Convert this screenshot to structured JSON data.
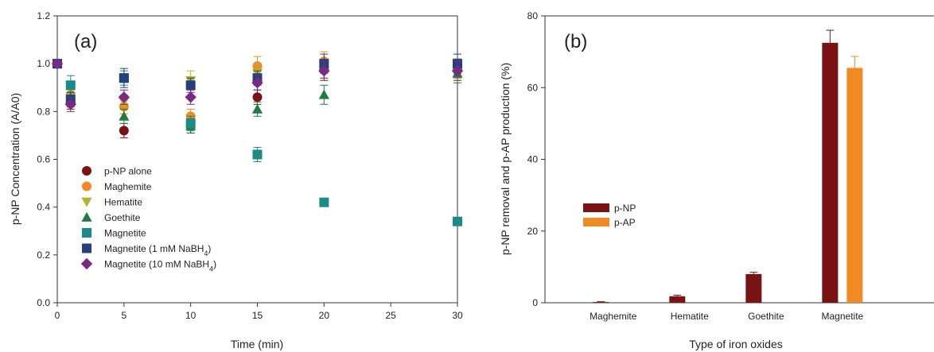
{
  "chart_data": [
    {
      "type": "scatter",
      "panel_label": "(a)",
      "xlabel": "Time (min)",
      "ylabel": "p-NP Concentration (A/A0)",
      "xlim": [
        0,
        30
      ],
      "ylim": [
        0,
        1.2
      ],
      "xticks": [
        0,
        5,
        10,
        15,
        20,
        25,
        30
      ],
      "yticks": [
        0.0,
        0.2,
        0.4,
        0.6,
        0.8,
        1.0,
        1.2
      ],
      "xtick_labels": [
        "0",
        "5",
        "10",
        "15",
        "20",
        "25",
        "30"
      ],
      "ytick_labels": [
        "0.0",
        "0.2",
        "0.4",
        "0.6",
        "0.8",
        "1.0",
        "1.2"
      ],
      "legend_position": "lower-left",
      "series": [
        {
          "name": "p-NP alone",
          "marker": "circle",
          "color": "#7a1414",
          "x": [
            0,
            1,
            5,
            10,
            15,
            20,
            30
          ],
          "y": [
            1.0,
            0.84,
            0.72,
            0.74,
            0.86,
            0.98,
            0.98
          ],
          "err": [
            0.01,
            0.03,
            0.03,
            0.03,
            0.03,
            0.04,
            0.04
          ]
        },
        {
          "name": "Maghemite",
          "marker": "circle",
          "color": "#f08a24",
          "x": [
            0,
            1,
            5,
            10,
            15,
            20,
            30
          ],
          "y": [
            1.0,
            0.87,
            0.82,
            0.78,
            0.99,
            1.01,
            0.98
          ],
          "err": [
            0.01,
            0.03,
            0.03,
            0.03,
            0.04,
            0.04,
            0.04
          ]
        },
        {
          "name": "Hematite",
          "marker": "triangle-down",
          "color": "#b5b52a",
          "x": [
            0,
            1,
            5,
            10,
            15,
            20,
            30
          ],
          "y": [
            1.0,
            0.86,
            0.84,
            0.93,
            0.96,
            0.97,
            0.97
          ],
          "err": [
            0.01,
            0.03,
            0.03,
            0.04,
            0.04,
            0.04,
            0.04
          ]
        },
        {
          "name": "Goethite",
          "marker": "triangle-up",
          "color": "#1e7d3c",
          "x": [
            0,
            1,
            5,
            10,
            15,
            20,
            30
          ],
          "y": [
            1.0,
            0.85,
            0.78,
            0.74,
            0.81,
            0.87,
            0.96
          ],
          "err": [
            0.01,
            0.03,
            0.03,
            0.03,
            0.03,
            0.04,
            0.04
          ]
        },
        {
          "name": "Magnetite",
          "marker": "square",
          "color": "#1d8a8a",
          "x": [
            0,
            1,
            5,
            10,
            15,
            20,
            30
          ],
          "y": [
            1.0,
            0.91,
            0.94,
            0.75,
            0.62,
            0.42,
            0.34
          ],
          "err": [
            0.01,
            0.04,
            0.03,
            0.03,
            0.03,
            0.0,
            0.0
          ]
        },
        {
          "name": "Magnetite (1 mM NaBH₄)",
          "name_base": "Magnetite (1 mM NaBH",
          "name_sub": "4",
          "name_tail": ")",
          "marker": "square",
          "color": "#24407d",
          "x": [
            0,
            1,
            5,
            10,
            15,
            20,
            30
          ],
          "y": [
            1.0,
            0.85,
            0.94,
            0.91,
            0.94,
            1.0,
            1.0
          ],
          "err": [
            0.01,
            0.03,
            0.04,
            0.03,
            0.03,
            0.04,
            0.04
          ]
        },
        {
          "name": "Magnetite (10 mM NaBH₄)",
          "name_base": "Magnetite (10 mM NaBH",
          "name_sub": "4",
          "name_tail": ")",
          "marker": "diamond",
          "color": "#7a2a82",
          "x": [
            0,
            1,
            5,
            10,
            15,
            20,
            30
          ],
          "y": [
            1.0,
            0.83,
            0.86,
            0.86,
            0.92,
            0.97,
            0.97
          ],
          "err": [
            0.01,
            0.03,
            0.03,
            0.03,
            0.03,
            0.04,
            0.04
          ]
        }
      ]
    },
    {
      "type": "bar",
      "panel_label": "(b)",
      "xlabel": "Type of iron oxides",
      "ylabel": "p-NP removal and p-AP production (%)",
      "ylim": [
        0,
        80
      ],
      "yticks": [
        0,
        20,
        40,
        60,
        80
      ],
      "ytick_labels": [
        "0",
        "20",
        "40",
        "60",
        "80"
      ],
      "categories": [
        "Maghemite",
        "Hematite",
        "Goethite",
        "Magnetite"
      ],
      "legend_position": "center-left",
      "series": [
        {
          "name": "p-NP",
          "color": "#7a1414",
          "values": [
            0.2,
            1.8,
            8.0,
            72.5
          ],
          "err": [
            0.1,
            0.3,
            0.5,
            3.5
          ]
        },
        {
          "name": "p-AP",
          "color": "#f08a24",
          "values": [
            0,
            0,
            0,
            65.5
          ],
          "err": [
            0,
            0,
            0,
            3.2
          ]
        }
      ]
    }
  ]
}
